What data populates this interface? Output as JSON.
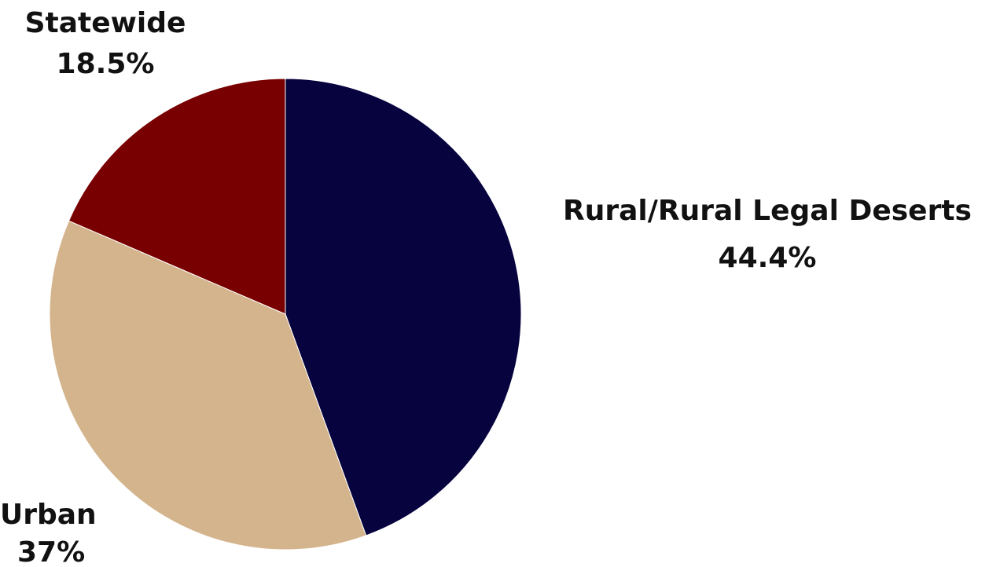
{
  "chart_data": {
    "type": "pie",
    "title": "",
    "start_angle_deg": 0,
    "direction": "clockwise",
    "legend": "none",
    "slices": [
      {
        "label": "Rural/Rural Legal Deserts",
        "value": 44.4,
        "value_label": "44.4%",
        "color": "#06033e"
      },
      {
        "label": "Urban",
        "value": 37,
        "value_label": "37%",
        "color": "#d4b48c"
      },
      {
        "label": "Statewide",
        "value": 18.5,
        "value_label": "18.5%",
        "color": "#780000"
      }
    ]
  }
}
